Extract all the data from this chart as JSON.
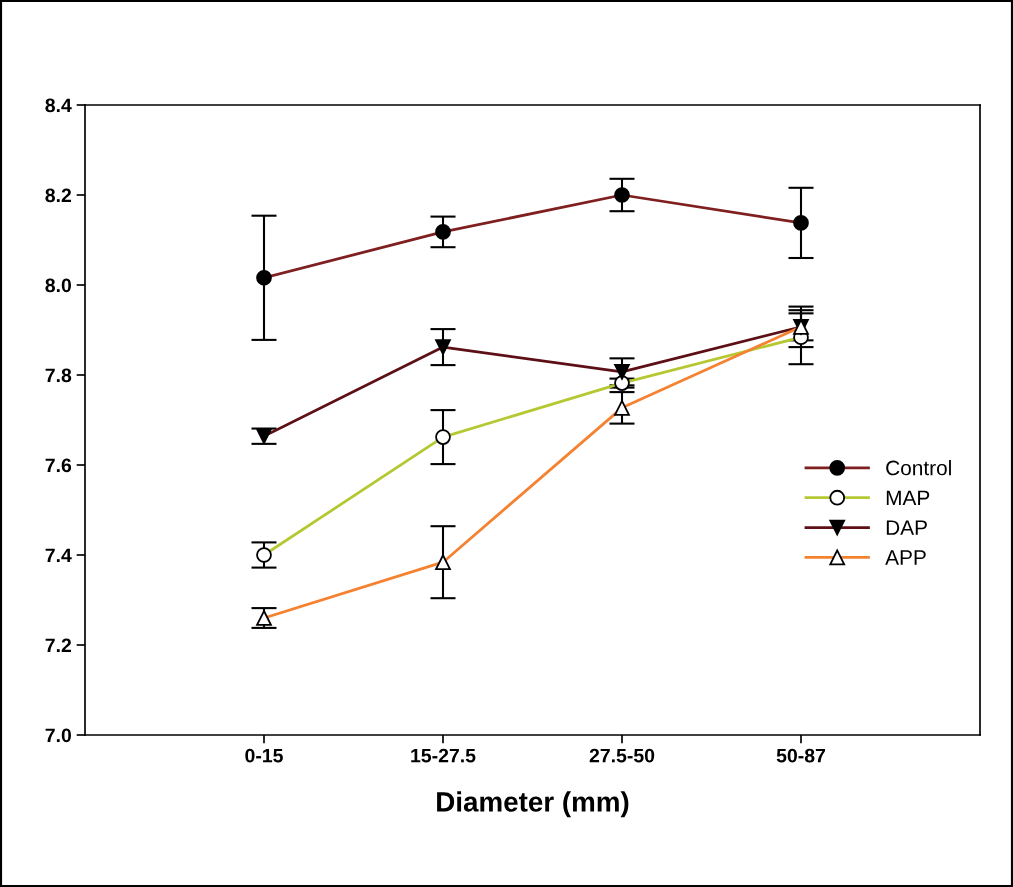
{
  "chart_data": {
    "type": "line",
    "xlabel": "Diameter (mm)",
    "categories": [
      "0-15",
      "15-27.5",
      "27.5-50",
      "50-87"
    ],
    "ylim": [
      7.0,
      8.4
    ],
    "yticks": [
      {
        "value": 7.0,
        "label": "7.0"
      },
      {
        "value": 7.2,
        "label": "7.2"
      },
      {
        "value": 7.4,
        "label": "7.4"
      },
      {
        "value": 7.6,
        "label": "7.6"
      },
      {
        "value": 7.8,
        "label": "7.8"
      },
      {
        "value": 8.0,
        "label": "8.0"
      },
      {
        "value": 8.2,
        "label": "8.2"
      },
      {
        "value": 8.4,
        "label": "8.4"
      }
    ],
    "grid": false,
    "legend": "right",
    "line_style": "solid",
    "series": [
      {
        "name": "Control",
        "color": "#7f1f1f",
        "marker": "circle",
        "values": [
          8.016,
          8.118,
          8.2,
          8.138
        ],
        "errors": [
          0.138,
          0.034,
          0.036,
          0.078
        ]
      },
      {
        "name": "MAP",
        "color": "#b5c832",
        "marker": "circle",
        "values": [
          7.4,
          7.662,
          7.782,
          7.884
        ],
        "errors": [
          0.028,
          0.06,
          0.01,
          0.06
        ]
      },
      {
        "name": "DAP",
        "color": "#5c0f14",
        "marker": "triangle_down",
        "values": [
          7.664,
          7.862,
          7.807,
          7.907
        ],
        "errors": [
          0.017,
          0.04,
          0.03,
          0.045
        ]
      },
      {
        "name": "APP",
        "color": "#f58231",
        "marker": "triangle",
        "values": [
          7.26,
          7.384,
          7.727,
          7.907
        ],
        "errors": [
          0.022,
          0.08,
          0.035,
          0.03
        ]
      }
    ]
  }
}
